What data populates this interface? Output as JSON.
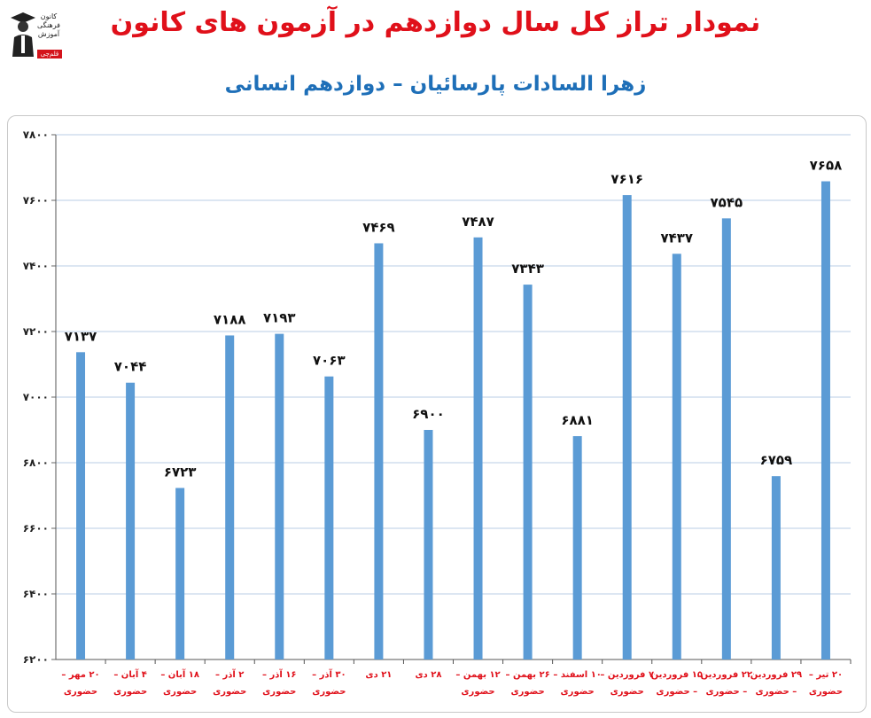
{
  "title": "نمودار تراز کل سال دوازدهم در آزمون های کانون",
  "subtitle": "زهرا السادات پارسائیان – دوازدهم انسانی",
  "logo": {
    "text": "کانون فرهنگی آموزش",
    "badge": "قلم‌چی",
    "icon": "graduate-icon"
  },
  "colors": {
    "bar": "#5b9bd5",
    "title": "#e0101a",
    "subtitle": "#1e6fb8",
    "category_label": "#e0101a",
    "grid": "#b9cde5"
  },
  "chart_data": {
    "type": "bar",
    "title": "نمودار تراز کل سال دوازدهم در آزمون های کانون",
    "subtitle": "زهرا السادات پارسائیان – دوازدهم انسانی",
    "categories": [
      [
        "۲۰ مهر –",
        "حضوری"
      ],
      [
        "۴ آبان –",
        "حضوری"
      ],
      [
        "۱۸ آبان –",
        "حضوری"
      ],
      [
        "۲ آذر –",
        "حضوری"
      ],
      [
        "۱۶ آذر –",
        "حضوری"
      ],
      [
        "۳۰ آذر –",
        "حضوری"
      ],
      [
        "۲۱ دی"
      ],
      [
        "۲۸ دی"
      ],
      [
        "۱۲ بهمن –",
        "حضوری"
      ],
      [
        "۲۶ بهمن –",
        "حضوری"
      ],
      [
        "۱۰ اسفند –",
        "حضوری"
      ],
      [
        "۷ فروردین –",
        "حضوری"
      ],
      [
        "۱۵ فروردین",
        "– حضوری"
      ],
      [
        "۲۲ فروردین",
        "– حضوری"
      ],
      [
        "۲۹ فروردین",
        "– حضوری"
      ],
      [
        "۲۰ تیر –",
        "حضوری"
      ]
    ],
    "values": [
      7137,
      7044,
      6723,
      7188,
      7193,
      7063,
      7469,
      6900,
      7487,
      7343,
      6881,
      7616,
      7437,
      7545,
      6759,
      7658
    ],
    "value_labels": [
      "۷۱۳۷",
      "۷۰۴۴",
      "۶۷۲۳",
      "۷۱۸۸",
      "۷۱۹۳",
      "۷۰۶۳",
      "۷۴۶۹",
      "۶۹۰۰",
      "۷۴۸۷",
      "۷۳۴۳",
      "۶۸۸۱",
      "۷۶۱۶",
      "۷۴۳۷",
      "۷۵۴۵",
      "۶۷۵۹",
      "۷۶۵۸"
    ],
    "ylim": [
      6200,
      7800
    ],
    "yticks": [
      6200,
      6400,
      6600,
      6800,
      7000,
      7200,
      7400,
      7600,
      7800
    ],
    "ytick_labels": [
      "۶۲۰۰",
      "۶۴۰۰",
      "۶۶۰۰",
      "۶۸۰۰",
      "۷۰۰۰",
      "۷۲۰۰",
      "۷۴۰۰",
      "۷۶۰۰",
      "۷۸۰۰"
    ],
    "grid": true,
    "legend": "none",
    "xlabel": "",
    "ylabel": ""
  }
}
